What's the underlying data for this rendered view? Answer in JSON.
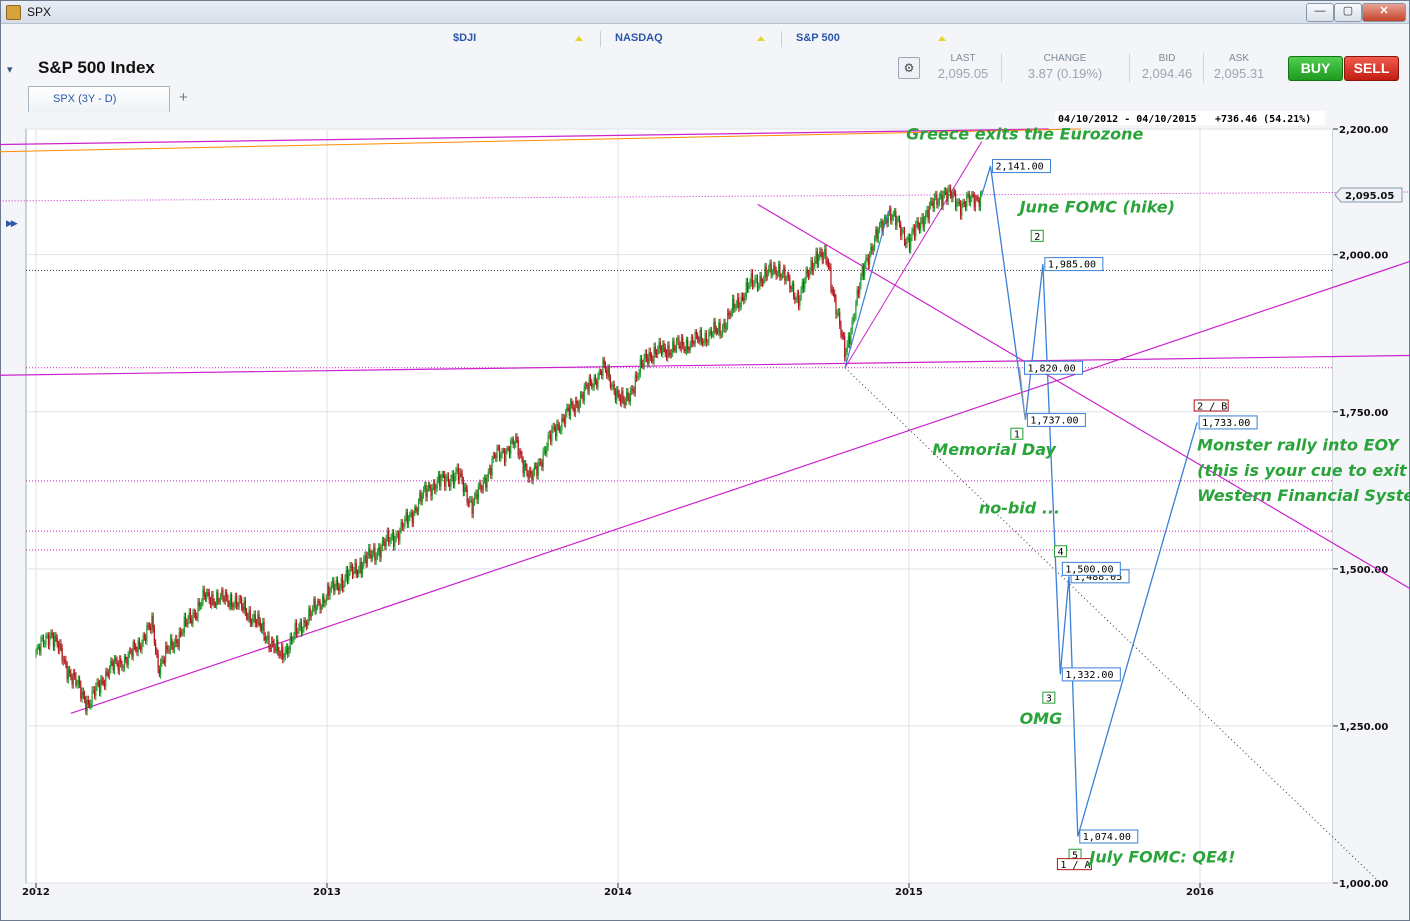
{
  "window": {
    "title": "SPX",
    "minimize_glyph": "—",
    "maximize_glyph": "▢",
    "close_glyph": "✕",
    "app_icon": "java-app-icon"
  },
  "tickers": [
    {
      "symbol": "$DJI"
    },
    {
      "symbol": "NASDAQ"
    },
    {
      "symbol": "S&P 500"
    }
  ],
  "header": {
    "title": "S&P 500 Index",
    "collapse_glyph": "▾",
    "tool_icon": "chart-settings-icon",
    "quotes": [
      {
        "label": "LAST",
        "value": "2,095.05"
      },
      {
        "label": "CHANGE",
        "value": "3.87 (0.19%)"
      },
      {
        "label": "BID",
        "value": "2,094.46"
      },
      {
        "label": "ASK",
        "value": "2,095.31"
      }
    ],
    "buy_label": "BUY",
    "sell_label": "SELL"
  },
  "tabs": {
    "active": "SPX (3Y - D)",
    "add_glyph": "+"
  },
  "sidebar": {
    "expand_glyph": "▶▶"
  },
  "chart_controls": {
    "fit": "▢",
    "zoom_in": "⊕",
    "zoom_out": "⊖",
    "zoom_reset": "⊕"
  },
  "chart_data": {
    "type": "line",
    "series_style": "candlestick",
    "range_label": "04/10/2012 - 04/10/2015",
    "change_label": "+736.46 (54.21%)",
    "y_scale": "linear",
    "ylim": [
      1000,
      2200
    ],
    "y_ticks": [
      "2,200.00",
      "2,000.00",
      "1,750.00",
      "1,500.00",
      "1,250.00",
      "1,000.00"
    ],
    "y_tick_values": [
      2200,
      2000,
      1750,
      1500,
      1250,
      1000
    ],
    "x_ticks": [
      "2012",
      "2013",
      "2014",
      "2015",
      "2016"
    ],
    "x_tick_values": [
      2012.0,
      2013.0,
      2014.0,
      2015.0,
      2016.0
    ],
    "xlim": [
      2012.0,
      2016.79
    ],
    "last_price": "2,095.05",
    "last_value": 2095.05,
    "price_path": [
      [
        2012.0,
        1365
      ],
      [
        2012.05,
        1400
      ],
      [
        2012.12,
        1330
      ],
      [
        2012.18,
        1285
      ],
      [
        2012.25,
        1340
      ],
      [
        2012.32,
        1360
      ],
      [
        2012.4,
        1410
      ],
      [
        2012.42,
        1345
      ],
      [
        2012.5,
        1400
      ],
      [
        2012.58,
        1455
      ],
      [
        2012.68,
        1450
      ],
      [
        2012.75,
        1420
      ],
      [
        2012.84,
        1360
      ],
      [
        2012.92,
        1415
      ],
      [
        2013.0,
        1460
      ],
      [
        2013.1,
        1500
      ],
      [
        2013.25,
        1560
      ],
      [
        2013.35,
        1630
      ],
      [
        2013.45,
        1650
      ],
      [
        2013.5,
        1600
      ],
      [
        2013.58,
        1680
      ],
      [
        2013.65,
        1700
      ],
      [
        2013.7,
        1640
      ],
      [
        2013.78,
        1720
      ],
      [
        2013.85,
        1760
      ],
      [
        2013.95,
        1820
      ],
      [
        2014.02,
        1760
      ],
      [
        2014.1,
        1840
      ],
      [
        2014.25,
        1860
      ],
      [
        2014.35,
        1880
      ],
      [
        2014.45,
        1950
      ],
      [
        2014.55,
        1980
      ],
      [
        2014.62,
        1930
      ],
      [
        2014.68,
        2000
      ],
      [
        2014.72,
        1990
      ],
      [
        2014.78,
        1840
      ],
      [
        2014.85,
        1990
      ],
      [
        2014.93,
        2070
      ],
      [
        2015.0,
        2020
      ],
      [
        2015.05,
        2060
      ],
      [
        2015.12,
        2100
      ],
      [
        2015.18,
        2080
      ],
      [
        2015.25,
        2095
      ]
    ],
    "projection": [
      {
        "x": 2015.28,
        "y": 2141.0,
        "label": "2,141.00"
      },
      {
        "x": 2015.4,
        "y": 1737.0,
        "label": "1,737.00"
      },
      {
        "x": 2015.46,
        "y": 1985.0,
        "label": "1,985.00"
      },
      {
        "x": 2015.52,
        "y": 1332.0,
        "label": "1,332.00"
      },
      {
        "x": 2015.55,
        "y": 1488.05,
        "label": "1,488.05"
      },
      {
        "x": 2015.58,
        "y": 1074.0,
        "label": "1,074.00"
      },
      {
        "x": 2015.99,
        "y": 1733.0,
        "label": "1,733.00"
      }
    ],
    "extra_levels": [
      {
        "x": 2015.39,
        "y": 1820.0,
        "label": "1,820.00"
      },
      {
        "x": 2015.52,
        "y": 1500.0,
        "label": "1,500.00"
      }
    ],
    "wave_labels": [
      {
        "x": 2015.35,
        "y": 1715,
        "label": "1"
      },
      {
        "x": 2015.42,
        "y": 2030,
        "label": "2"
      },
      {
        "x": 2015.46,
        "y": 1295,
        "label": "3"
      },
      {
        "x": 2015.5,
        "y": 1528,
        "label": "4"
      },
      {
        "x": 2015.55,
        "y": 1045,
        "label": "5"
      },
      {
        "x": 2015.51,
        "y": 1030,
        "label": "1 / A"
      },
      {
        "x": 2015.98,
        "y": 1760,
        "label": "2 / B"
      }
    ],
    "annotations": [
      {
        "text": "Greece exits the Eurozone",
        "x": 2014.99,
        "y": 2183
      },
      {
        "text": "June FOMC (hike)",
        "x": 2015.38,
        "y": 2067
      },
      {
        "text": "Memorial Day",
        "x": 2015.08,
        "y": 1681
      },
      {
        "text": "Monster rally into EOY",
        "x": 2015.99,
        "y": 1688
      },
      {
        "text": "(this is your cue to exit the",
        "x": 2015.99,
        "y": 1648
      },
      {
        "text": "Western Financial System)",
        "x": 2015.99,
        "y": 1608
      },
      {
        "text": "no-bid ...",
        "x": 2015.24,
        "y": 1588
      },
      {
        "text": "OMG",
        "x": 2015.38,
        "y": 1253
      },
      {
        "text": "July FOMC: QE4!",
        "x": 2015.62,
        "y": 1033
      }
    ],
    "colors": {
      "up_candle": "#1f9e2f",
      "down_candle": "#b5121b",
      "channel": "#cc22cc",
      "trend": "#ff8c00",
      "projection": "#3a7fd5",
      "annotation": "#2aa43a",
      "grid": "#dde2e8"
    }
  }
}
